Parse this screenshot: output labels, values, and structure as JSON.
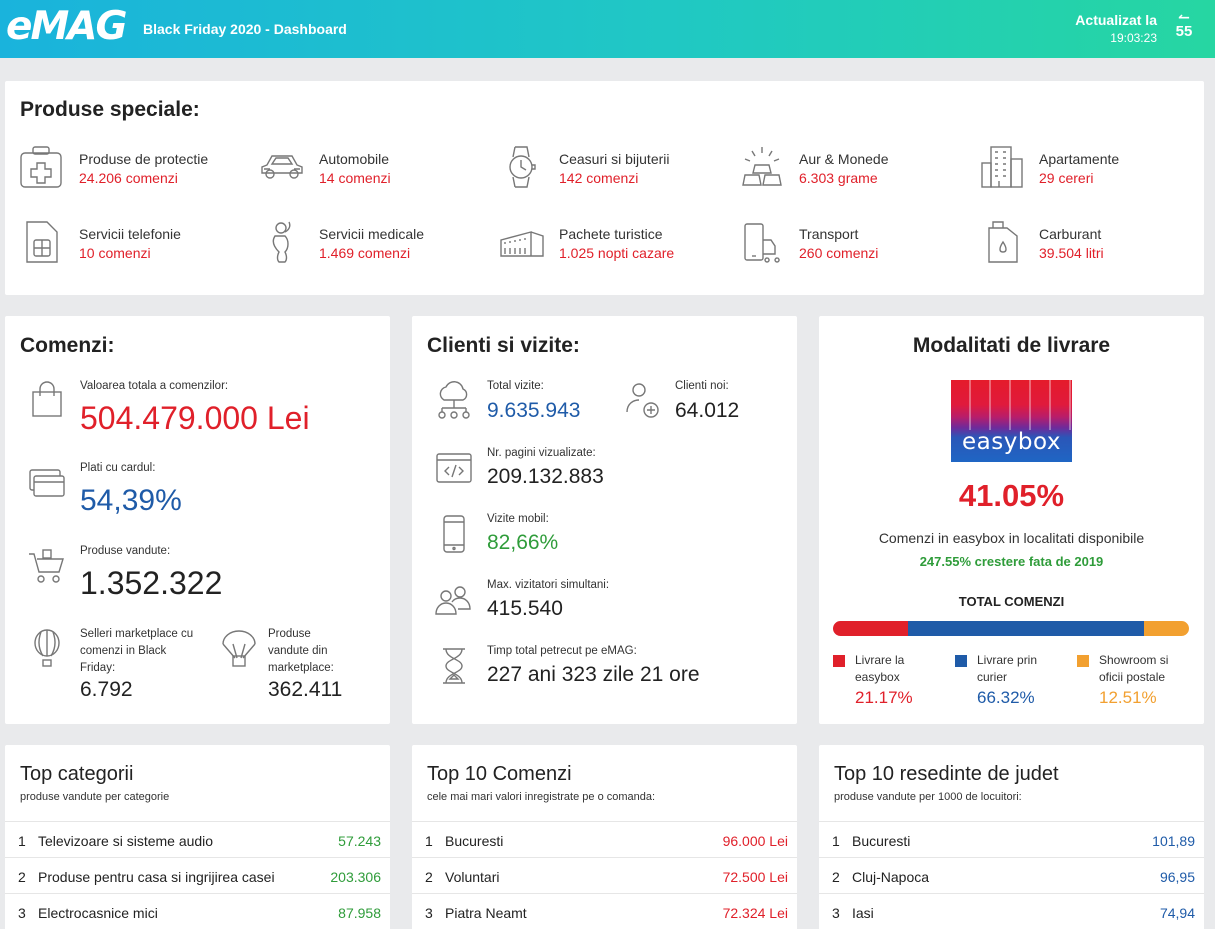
{
  "header": {
    "logo": "eMAG",
    "title": "Black Friday 2020 - Dashboard",
    "updated_label": "Actualizat la",
    "updated_time": "19:03:23",
    "refresh_count": "55"
  },
  "colors": {
    "header_start": "#1ab3dc",
    "header_end": "#26d6a2",
    "red": "#e0202a",
    "blue": "#1f5ba8",
    "green": "#2f9c3a",
    "orange": "#f2a030"
  },
  "special": {
    "title": "Produse speciale:",
    "items": [
      {
        "icon": "first-aid-kit-icon",
        "name": "Produse de protectie",
        "value": "24.206 comenzi"
      },
      {
        "icon": "car-icon",
        "name": "Automobile",
        "value": "14 comenzi"
      },
      {
        "icon": "watch-icon",
        "name": "Ceasuri si bijuterii",
        "value": "142 comenzi"
      },
      {
        "icon": "gold-bars-icon",
        "name": "Aur & Monede",
        "value": "6.303 grame"
      },
      {
        "icon": "building-icon",
        "name": "Apartamente",
        "value": "29 cereri"
      },
      {
        "icon": "sim-card-icon",
        "name": "Servicii telefonie",
        "value": "10 comenzi"
      },
      {
        "icon": "medical-icon",
        "name": "Servicii medicale",
        "value": "1.469 comenzi"
      },
      {
        "icon": "colosseum-icon",
        "name": "Pachete turistice",
        "value": "1.025 nopti cazare"
      },
      {
        "icon": "phone-delivery-icon",
        "name": "Transport",
        "value": "260 comenzi"
      },
      {
        "icon": "fuel-can-icon",
        "name": "Carburant",
        "value": "39.504 litri"
      }
    ]
  },
  "orders": {
    "title": "Comenzi:",
    "total_label": "Valoarea totala a comenzilor:",
    "total_value": "504.479.000 Lei",
    "card_label": "Plati cu cardul:",
    "card_value": "54,39%",
    "sold_label": "Produse vandute:",
    "sold_value": "1.352.322",
    "sellers_label": "Selleri marketplace cu comenzi in Black Friday:",
    "sellers_value": "6.792",
    "mp_label": "Produse vandute din marketplace:",
    "mp_value": "362.411"
  },
  "clients": {
    "title": "Clienti si vizite:",
    "visits_label": "Total vizite:",
    "visits_value": "9.635.943",
    "new_label": "Clienti noi:",
    "new_value": "64.012",
    "pages_label": "Nr. pagini vizualizate:",
    "pages_value": "209.132.883",
    "mobile_label": "Vizite mobil:",
    "mobile_value": "82,66%",
    "sim_label": "Max. vizitatori simultani:",
    "sim_value": "415.540",
    "time_label": "Timp total petrecut pe eMAG:",
    "time_value": "227 ani 323 zile 21 ore"
  },
  "delivery": {
    "title": "Modalitati de livrare",
    "brand": "easybox",
    "percent": "41.05%",
    "desc": "Comenzi in easybox in localitati disponibile",
    "growth": "247.55% crestere fata de 2019",
    "total_label": "TOTAL COMENZI",
    "shares": [
      {
        "label": "Livrare la easybox",
        "value": "21.17%",
        "fraction": 0.2117,
        "color": "#e0202a"
      },
      {
        "label": "Livrare prin curier",
        "value": "66.32%",
        "fraction": 0.6632,
        "color": "#1f5ba8"
      },
      {
        "label": "Showroom si oficii postale",
        "value": "12.51%",
        "fraction": 0.1251,
        "color": "#f2a030"
      }
    ]
  },
  "top_categories": {
    "title": "Top categorii",
    "subtitle": "produse vandute per categorie",
    "rows": [
      {
        "n": "1",
        "name": "Televizoare si sisteme audio",
        "value": "57.243"
      },
      {
        "n": "2",
        "name": "Produse pentru casa si ingrijirea casei",
        "value": "203.306"
      },
      {
        "n": "3",
        "name": "Electrocasnice mici",
        "value": "87.958"
      }
    ]
  },
  "top_orders": {
    "title": "Top 10 Comenzi",
    "subtitle": "cele mai mari valori inregistrate pe o comanda:",
    "rows": [
      {
        "n": "1",
        "name": "Bucuresti",
        "value": "96.000 Lei"
      },
      {
        "n": "2",
        "name": "Voluntari",
        "value": "72.500 Lei"
      },
      {
        "n": "3",
        "name": "Piatra Neamt",
        "value": "72.324 Lei"
      }
    ]
  },
  "top_counties": {
    "title": "Top 10 resedinte de judet",
    "subtitle": "produse vandute per 1000 de locuitori:",
    "rows": [
      {
        "n": "1",
        "name": "Bucuresti",
        "value": "101,89"
      },
      {
        "n": "2",
        "name": "Cluj-Napoca",
        "value": "96,95"
      },
      {
        "n": "3",
        "name": "Iasi",
        "value": "74,94"
      }
    ]
  }
}
